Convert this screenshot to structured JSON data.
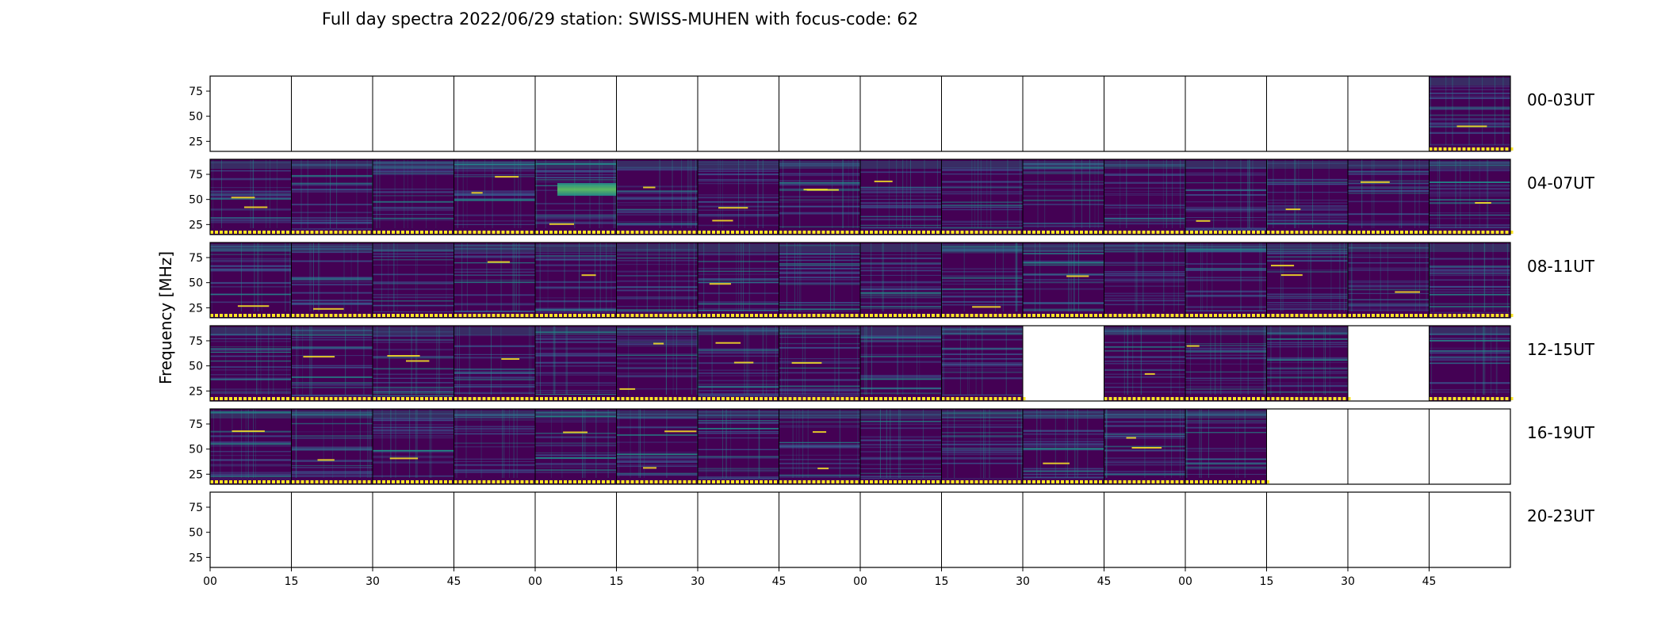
{
  "chart_data": {
    "type": "heatmap",
    "title": "Full day spectra 2022/06/29 station: SWISS-MUHEN with focus-code: 62",
    "ylabel": "Frequency [MHz]",
    "xlabel": "",
    "ylim": [
      15,
      90
    ],
    "yticks": [
      25,
      50,
      75
    ],
    "xtick_labels": [
      "00",
      "15",
      "30",
      "45",
      "00",
      "15",
      "30",
      "45",
      "00",
      "15",
      "30",
      "45",
      "00",
      "15",
      "30",
      "45"
    ],
    "colormap": [
      "#440154",
      "#3b528b",
      "#21918c",
      "#5ec962",
      "#fde725"
    ],
    "rows": [
      {
        "label": "00-03UT",
        "cells": [
          "empty",
          "empty",
          "empty",
          "empty",
          "empty",
          "empty",
          "empty",
          "empty",
          "empty",
          "empty",
          "empty",
          "empty",
          "empty",
          "empty",
          "empty",
          "data"
        ]
      },
      {
        "label": "04-07UT",
        "cells": [
          "data",
          "data",
          "data",
          "data",
          "data",
          "data",
          "data",
          "data",
          "data",
          "data",
          "data",
          "data",
          "data",
          "data",
          "data",
          "data"
        ]
      },
      {
        "label": "08-11UT",
        "cells": [
          "data",
          "data",
          "data",
          "data",
          "data",
          "data",
          "data",
          "data",
          "data",
          "data",
          "data",
          "data",
          "data",
          "data",
          "data",
          "data"
        ]
      },
      {
        "label": "12-15UT",
        "cells": [
          "data",
          "data",
          "data",
          "data",
          "data",
          "data",
          "data",
          "data",
          "data",
          "data",
          "empty",
          "data",
          "data",
          "data",
          "empty",
          "data"
        ]
      },
      {
        "label": "16-19UT",
        "cells": [
          "data",
          "data",
          "data",
          "data",
          "data",
          "data",
          "data",
          "data",
          "data",
          "data",
          "data",
          "data",
          "data",
          "empty",
          "empty",
          "empty"
        ]
      },
      {
        "label": "20-23UT",
        "cells": [
          "empty",
          "empty",
          "empty",
          "empty",
          "empty",
          "empty",
          "empty",
          "empty",
          "empty",
          "empty",
          "empty",
          "empty",
          "empty",
          "empty",
          "empty",
          "empty"
        ]
      }
    ]
  }
}
